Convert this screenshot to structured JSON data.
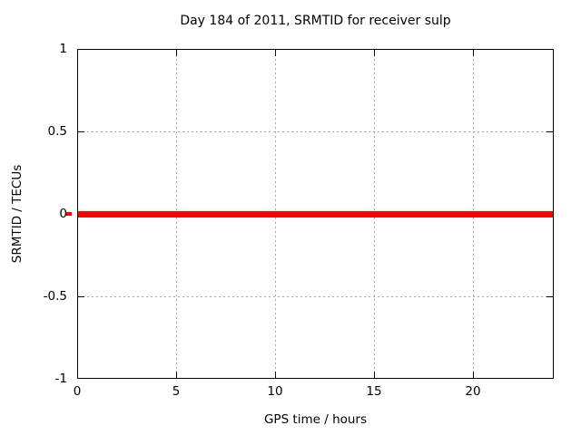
{
  "chart_data": {
    "type": "line",
    "title": "Day 184 of 2011, SRMTID for receiver sulp",
    "xlabel": "GPS time / hours",
    "ylabel": "SRMTID / TECUs",
    "xlim": [
      0,
      24
    ],
    "ylim": [
      -1,
      1
    ],
    "xticks": [
      0,
      5,
      10,
      15,
      20
    ],
    "yticks": [
      -1,
      -0.5,
      0,
      0.5,
      1
    ],
    "xtick_labels": [
      "0",
      "5",
      "10",
      "15",
      "20"
    ],
    "ytick_labels_top_to_bottom": [
      "1",
      "0.5",
      "0",
      "-0.5",
      "-1"
    ],
    "grid": true,
    "grid_style": "dashed",
    "legend_position": "none",
    "series": [
      {
        "name": "SRMTID",
        "color": "#ff0000",
        "style": "thick solid line",
        "points": [
          [
            0,
            0
          ],
          [
            24,
            0
          ]
        ],
        "description": "Constant value of 0 TECUs across the full 0-24 hour range"
      }
    ],
    "colors": {
      "line": "#ff0000",
      "grid": "#a8a8a8",
      "border": "#000000",
      "text": "#000000",
      "background": "#ffffff"
    }
  }
}
